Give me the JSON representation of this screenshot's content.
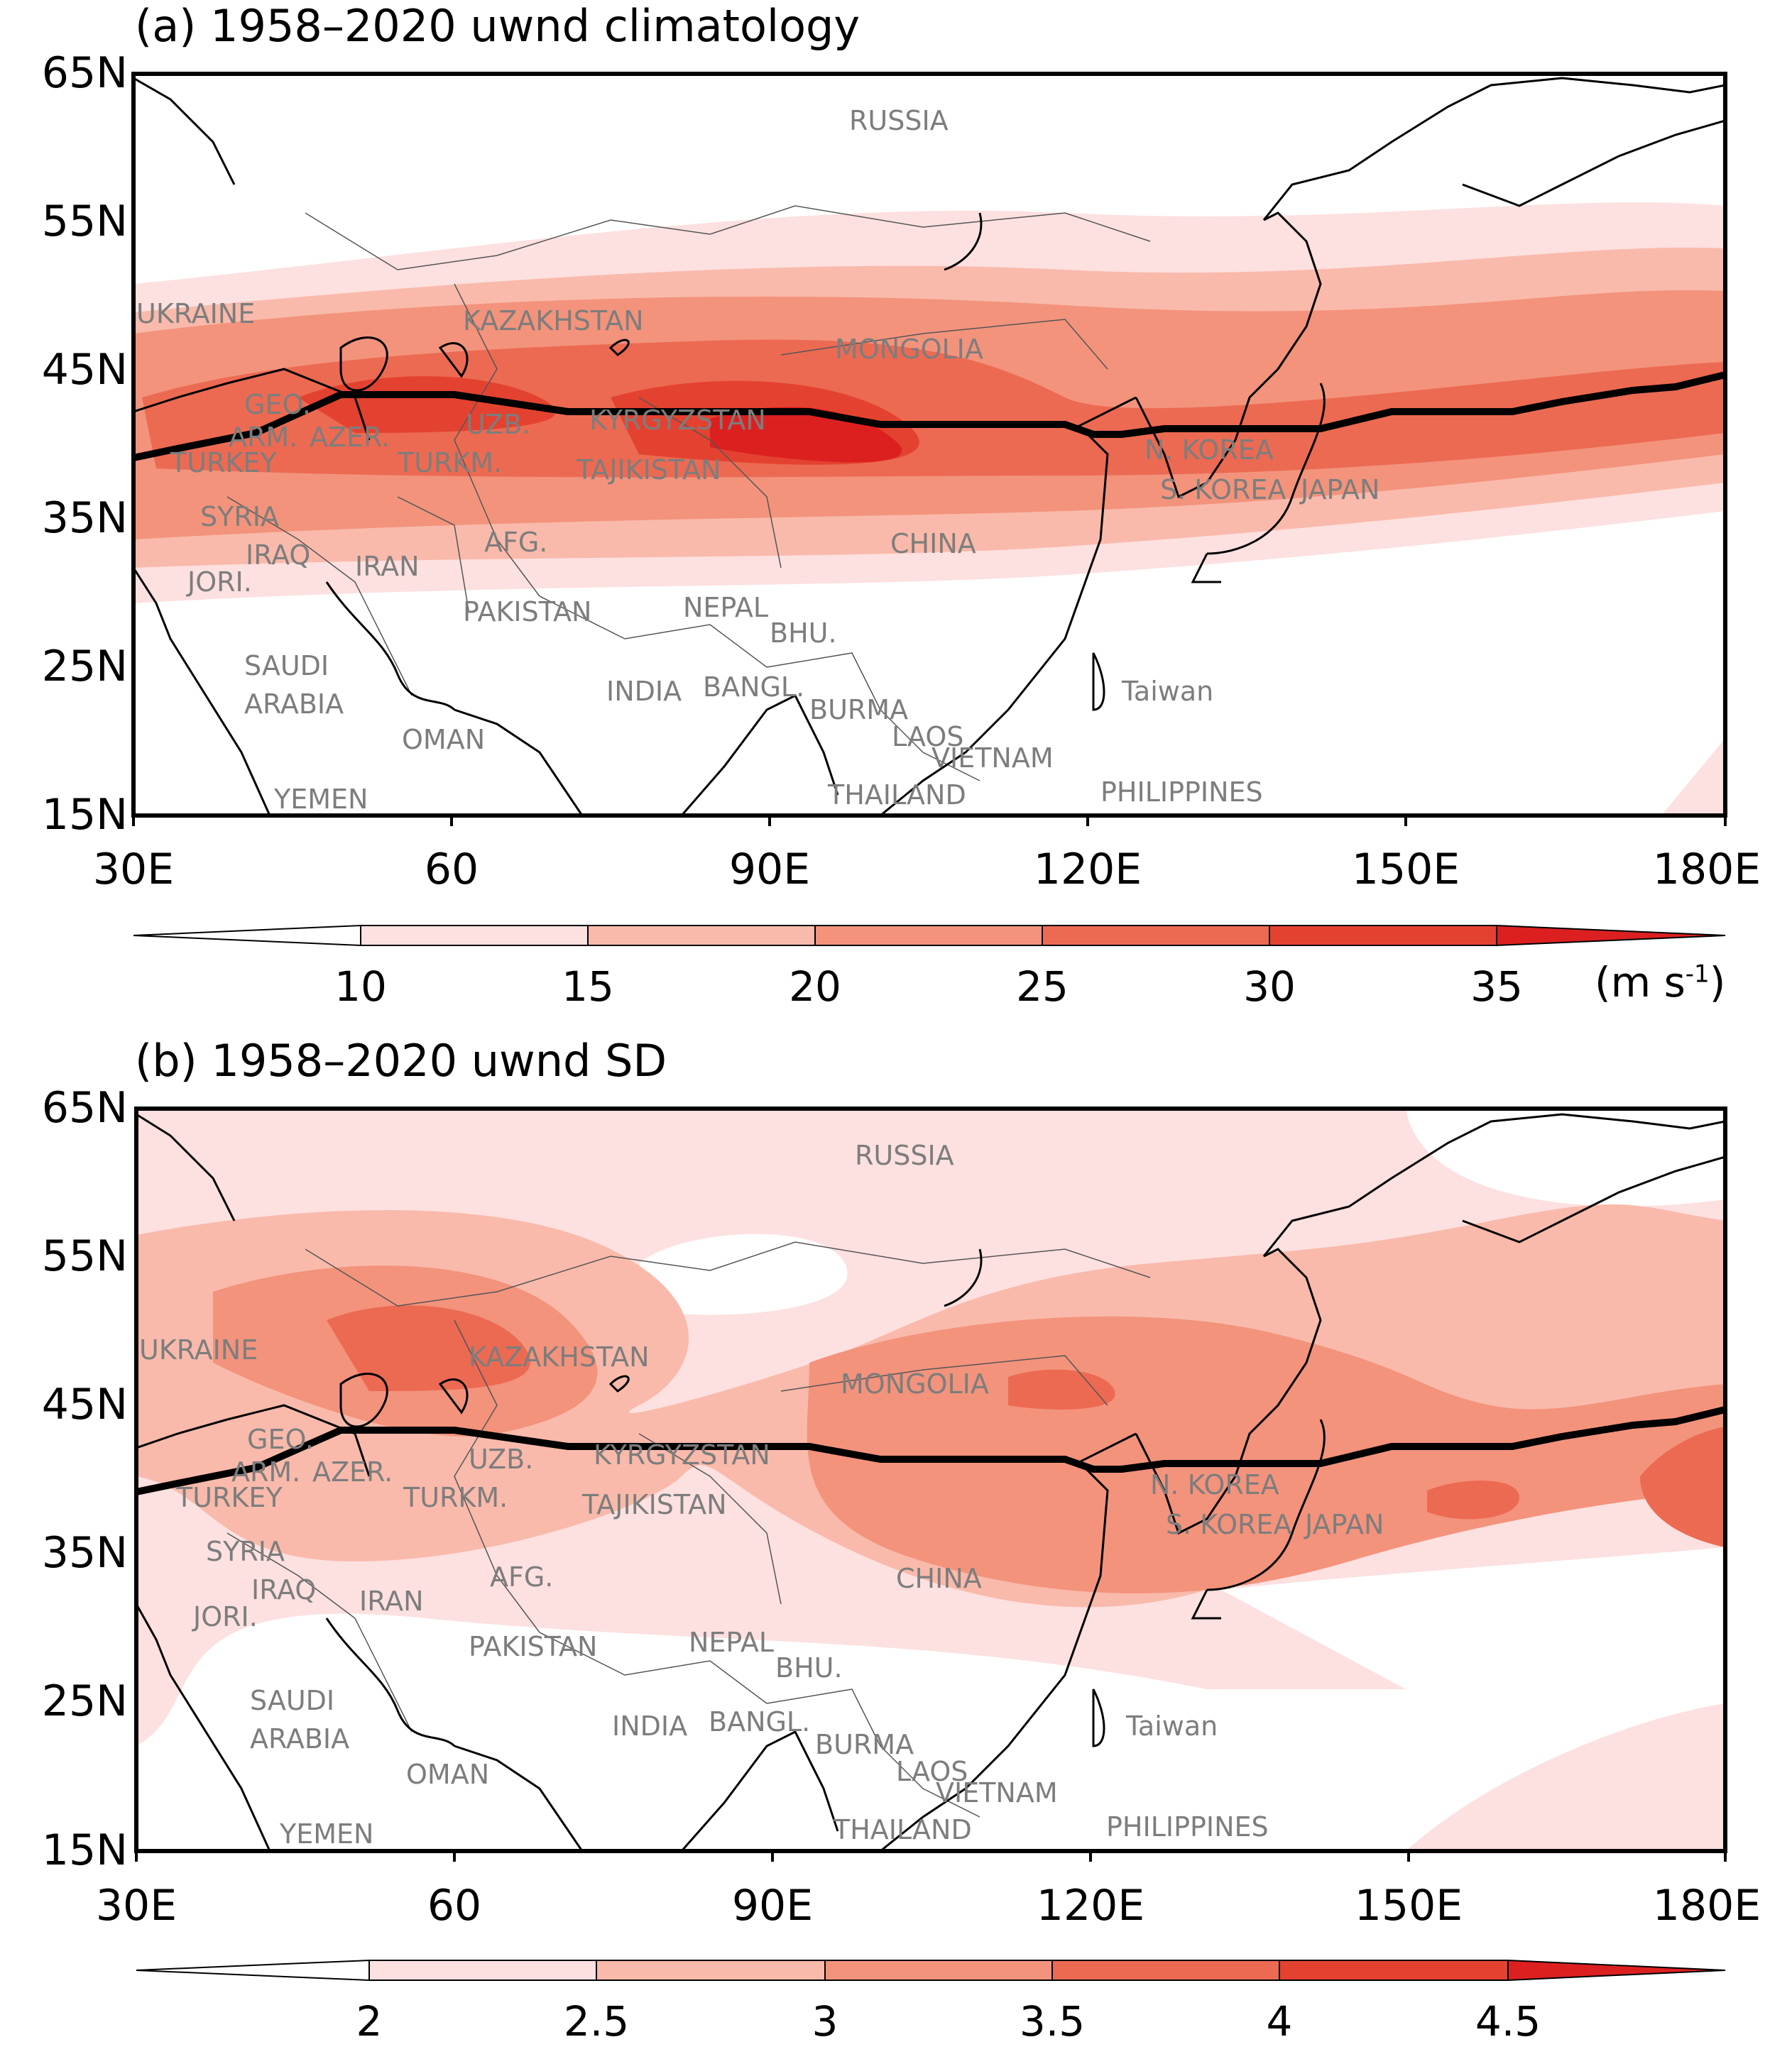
{
  "panels": [
    {
      "title": "(a) 1958–2020 uwnd  climatology",
      "colorbar_labels": [
        "10",
        "15",
        "20",
        "25",
        "30",
        "35"
      ],
      "unit_main": "(m s",
      "unit_sup": "-1",
      "unit_close": ")"
    },
    {
      "title": "(b) 1958–2020 uwnd  SD",
      "colorbar_labels": [
        "2",
        "2.5",
        "3",
        "3.5",
        "4",
        "4.5"
      ]
    }
  ],
  "axes": {
    "lat_labels": [
      "65N",
      "55N",
      "45N",
      "35N",
      "25N",
      "15N"
    ],
    "lon_labels": [
      "30E",
      "60",
      "90E",
      "120E",
      "150E",
      "180E"
    ]
  },
  "countries": [
    "RUSSIA",
    "UKRAINE",
    "KAZAKHSTAN",
    "MONGOLIA",
    "GEO.",
    "ARM.",
    "AZER.",
    "UZB.",
    "KYRGYZSTAN",
    "TURKEY",
    "TURKM.",
    "TAJIKISTAN",
    "N. KOREA",
    "S. KOREA",
    "JAPAN",
    "SYRIA",
    "IRAQ",
    "IRAN",
    "AFG.",
    "CHINA",
    "JORI.",
    "PAKISTAN",
    "NEPAL",
    "BHU.",
    "SAUDI",
    "ARABIA",
    "INDIA",
    "BANGL.",
    "Taiwan",
    "OMAN",
    "BURMA",
    "LAOS",
    "VIETNAM",
    "YEMEN",
    "THAILAND",
    "PHILIPPINES"
  ],
  "palette": [
    "#ffffff",
    "#fde0e0",
    "#f9baab",
    "#f3937c",
    "#ec6a52",
    "#e44230",
    "#dc2020"
  ],
  "colors": {
    "jet_axis": "#000000",
    "coastline": "#000000",
    "border": "#555555",
    "label": "#7d7d7d"
  }
}
